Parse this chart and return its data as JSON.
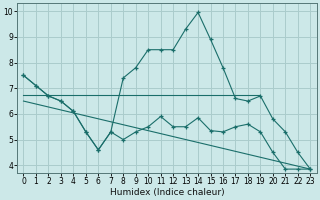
{
  "xlabel": "Humidex (Indice chaleur)",
  "background_color": "#cce8e8",
  "grid_color": "#aacccc",
  "line_color": "#1a6e6a",
  "xlim": [
    -0.5,
    23.5
  ],
  "ylim": [
    3.7,
    10.3
  ],
  "xticks": [
    0,
    1,
    2,
    3,
    4,
    5,
    6,
    7,
    8,
    9,
    10,
    11,
    12,
    13,
    14,
    15,
    16,
    17,
    18,
    19,
    20,
    21,
    22,
    23
  ],
  "yticks": [
    4,
    5,
    6,
    7,
    8,
    9,
    10
  ],
  "line1_x": [
    0,
    1,
    2,
    3,
    4,
    5,
    6,
    7,
    8,
    9,
    10,
    11,
    12,
    13,
    14,
    15,
    16,
    17,
    18,
    19,
    20,
    21,
    22,
    23
  ],
  "line1_y": [
    7.5,
    7.1,
    6.7,
    6.5,
    6.1,
    5.3,
    4.6,
    5.3,
    5.0,
    5.3,
    5.5,
    5.9,
    5.5,
    5.5,
    5.85,
    5.35,
    5.3,
    5.5,
    5.6,
    5.3,
    4.5,
    3.85,
    3.85,
    3.85
  ],
  "line2_x": [
    0,
    1,
    2,
    3,
    4,
    5,
    6,
    7,
    8,
    9,
    10,
    11,
    12,
    13,
    14,
    15,
    16,
    17,
    18,
    19,
    20,
    21,
    22,
    23
  ],
  "line2_y": [
    7.5,
    7.1,
    6.7,
    6.5,
    6.1,
    5.3,
    4.6,
    5.3,
    7.4,
    7.8,
    8.5,
    8.5,
    8.5,
    9.3,
    9.95,
    8.9,
    7.8,
    6.6,
    6.5,
    6.7,
    5.8,
    5.3,
    4.5,
    3.85
  ],
  "line3_x": [
    0,
    19
  ],
  "line3_y": [
    6.75,
    6.75
  ],
  "line4_x": [
    0,
    23
  ],
  "line4_y": [
    6.5,
    3.85
  ]
}
